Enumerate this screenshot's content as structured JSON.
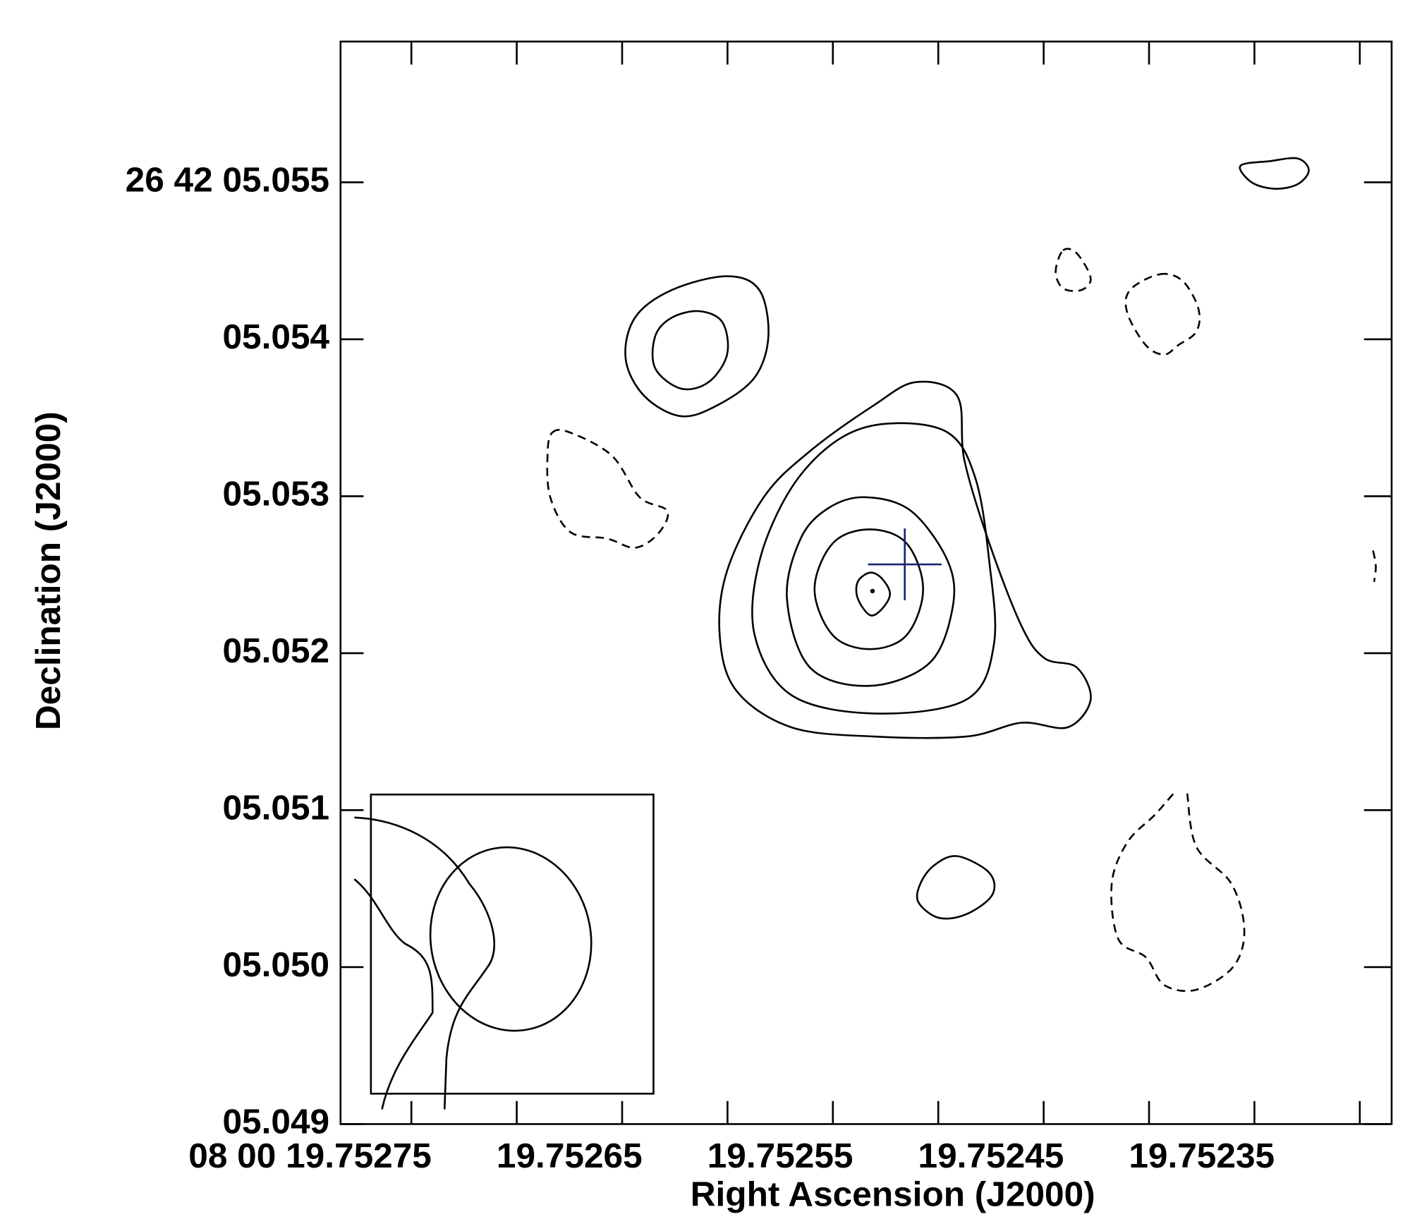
{
  "chart_data": {
    "type": "contour",
    "xlabel": "Right Ascension (J2000)",
    "ylabel": "Declination (J2000)",
    "xlim": [
      19.7527836,
      19.7522849
    ],
    "ylim": [
      5.049,
      5.055897
    ],
    "xticks": [
      {
        "value": 19.75275,
        "label": "08 00 19.75275"
      },
      {
        "value": 19.75265,
        "label": "19.75265"
      },
      {
        "value": 19.75255,
        "label": "19.75255"
      },
      {
        "value": 19.75245,
        "label": "19.75245"
      },
      {
        "value": 19.75235,
        "label": "19.75235"
      }
    ],
    "xminor_ticks": [
      19.7527,
      19.7526,
      19.7525,
      19.7524,
      19.7523
    ],
    "yticks": [
      {
        "value": 5.055,
        "label": "26 42 05.055"
      },
      {
        "value": 5.054,
        "label": "05.054"
      },
      {
        "value": 5.053,
        "label": "05.053"
      },
      {
        "value": 5.052,
        "label": "05.052"
      },
      {
        "value": 5.051,
        "label": "05.051"
      },
      {
        "value": 5.05,
        "label": "05.050"
      },
      {
        "value": 5.049,
        "label": "05.049"
      }
    ],
    "color": "#000000",
    "marker_color": "#1a2370",
    "contours": [
      {
        "style": "solid",
        "closed": true,
        "x": [
          19.7525107,
          19.752491,
          19.7524876,
          19.7524758,
          19.7524605,
          19.7524496,
          19.7524343,
          19.7524277,
          19.7524386,
          19.7524605,
          19.7524867,
          19.7525304,
          19.7525697,
          19.7525959,
          19.7526037,
          19.7526002,
          19.7525828,
          19.7525609,
          19.7525304
        ],
        "y": [
          5.053727,
          5.053639,
          5.053229,
          5.052701,
          5.052173,
          5.051968,
          5.051909,
          5.051704,
          5.051528,
          5.051557,
          5.051469,
          5.051469,
          5.051528,
          5.051763,
          5.052114,
          5.052525,
          5.052994,
          5.053287,
          5.053581
        ]
      },
      {
        "style": "solid",
        "closed": true,
        "x": [
          19.7525238,
          19.7524954,
          19.7524823,
          19.7524758,
          19.7524736,
          19.7524867,
          19.7525304,
          19.7525697,
          19.7525871,
          19.7525849,
          19.7525697,
          19.7525478
        ],
        "y": [
          5.053463,
          5.053405,
          5.053111,
          5.052584,
          5.052056,
          5.051704,
          5.051616,
          5.051733,
          5.052114,
          5.052584,
          5.053053,
          5.053358
        ]
      },
      {
        "style": "solid",
        "closed": true,
        "x": [
          19.7525347,
          19.7525129,
          19.7524954,
          19.7524932,
          19.7525041,
          19.7525325,
          19.7525609,
          19.7525718,
          19.7525653,
          19.7525522
        ],
        "y": [
          5.052994,
          5.052906,
          5.052584,
          5.05229,
          5.051938,
          5.051792,
          5.051909,
          5.052349,
          5.05273,
          5.052924
        ]
      },
      {
        "style": "solid",
        "closed": true,
        "x": [
          19.7525325,
          19.7525151,
          19.7525072,
          19.7525151,
          19.7525325,
          19.75255,
          19.7525587,
          19.75255
        ],
        "y": [
          5.052789,
          5.052701,
          5.052408,
          5.052114,
          5.052026,
          5.052114,
          5.052408,
          5.052701
        ]
      },
      {
        "style": "solid",
        "closed": true,
        "x": [
          19.7525382,
          19.7525325,
          19.7525269,
          19.7525229,
          19.7525269,
          19.7525325,
          19.7525382
        ],
        "y": [
          5.052455,
          5.052513,
          5.052478,
          5.052378,
          5.052279,
          5.052243,
          5.052349
        ]
      },
      {
        "style": "solid",
        "closed": true,
        "x": [
          19.7526002,
          19.7525849,
          19.7525806,
          19.7525871,
          19.7526046,
          19.7526221,
          19.7526395,
          19.7526483,
          19.7526439,
          19.7526264
        ],
        "y": [
          5.054402,
          5.054314,
          5.05402,
          5.053757,
          5.053581,
          5.05351,
          5.053639,
          5.053874,
          5.054138,
          5.054314
        ]
      },
      {
        "style": "solid",
        "closed": true,
        "x": [
          19.7526133,
          19.7526024,
          19.7526002,
          19.752609,
          19.7526221,
          19.7526343,
          19.7526343,
          19.7526264
        ],
        "y": [
          5.054179,
          5.054108,
          5.053903,
          5.053727,
          5.053686,
          5.053815,
          5.05402,
          5.054138
        ]
      },
      {
        "style": "solid",
        "closed": true,
        "x": [
          19.752491,
          19.7524758,
          19.7524744,
          19.7524867,
          19.7524998,
          19.7525094,
          19.7525085,
          19.752502
        ],
        "y": [
          5.050707,
          5.050601,
          5.05046,
          5.050337,
          5.050314,
          5.050413,
          5.050531,
          5.050648
        ]
      },
      {
        "style": "solid",
        "closed": true,
        "x": [
          19.7523566,
          19.7523426,
          19.7523295,
          19.7523242,
          19.7523295,
          19.7523404,
          19.7523513
        ],
        "y": [
          5.055106,
          5.055135,
          5.055152,
          5.055076,
          5.054988,
          5.054959,
          5.055
        ]
      },
      {
        "style": "dashed",
        "closed": true,
        "x": [
          19.7526832,
          19.7526745,
          19.7526548,
          19.7526417,
          19.7526286,
          19.752633,
          19.7526439,
          19.752657,
          19.7526745,
          19.7526841,
          19.7526854
        ],
        "y": [
          5.053405,
          5.053405,
          5.053258,
          5.052994,
          5.052906,
          5.05276,
          5.052672,
          5.05273,
          5.052771,
          5.052994,
          5.053258
        ]
      },
      {
        "style": "dashed",
        "closed": true,
        "x": [
          19.7524408,
          19.7524343,
          19.7524277,
          19.7524321,
          19.7524408,
          19.7524443
        ],
        "y": [
          5.054566,
          5.054548,
          5.05439,
          5.054314,
          5.054325,
          5.054431
        ]
      },
      {
        "style": "dashed",
        "closed": true,
        "x": [
          19.752395,
          19.7523841,
          19.7523766,
          19.7523775,
          19.7523862,
          19.7523928,
          19.7524015,
          19.7524103,
          19.752409
        ],
        "y": [
          5.054414,
          5.054372,
          5.054196,
          5.05405,
          5.053962,
          5.053903,
          5.053962,
          5.054167,
          5.054314
        ]
      },
      {
        "style": "dashed",
        "closed": false,
        "x": [
          19.7523819,
          19.7523775,
          19.7523609,
          19.7523548,
          19.75236,
          19.7523775,
          19.7523928,
          19.7524015,
          19.7524146,
          19.7524177,
          19.7524103,
          19.7523972,
          19.7523884
        ],
        "y": [
          5.051106,
          5.050765,
          5.050531,
          5.050238,
          5.050003,
          5.049856,
          5.049886,
          5.050062,
          5.050179,
          5.050531,
          5.050795,
          5.050971,
          5.051106
        ]
      },
      {
        "style": "dashed",
        "closed": false,
        "x": [
          19.7522937,
          19.7522924,
          19.7522932
        ],
        "y": [
          5.052654,
          5.052554,
          5.052455
        ]
      }
    ],
    "marker": {
      "x": 19.7525159,
      "y": 5.052566
    },
    "peak": {
      "x": 19.7525312,
      "y": 5.052396
    }
  }
}
